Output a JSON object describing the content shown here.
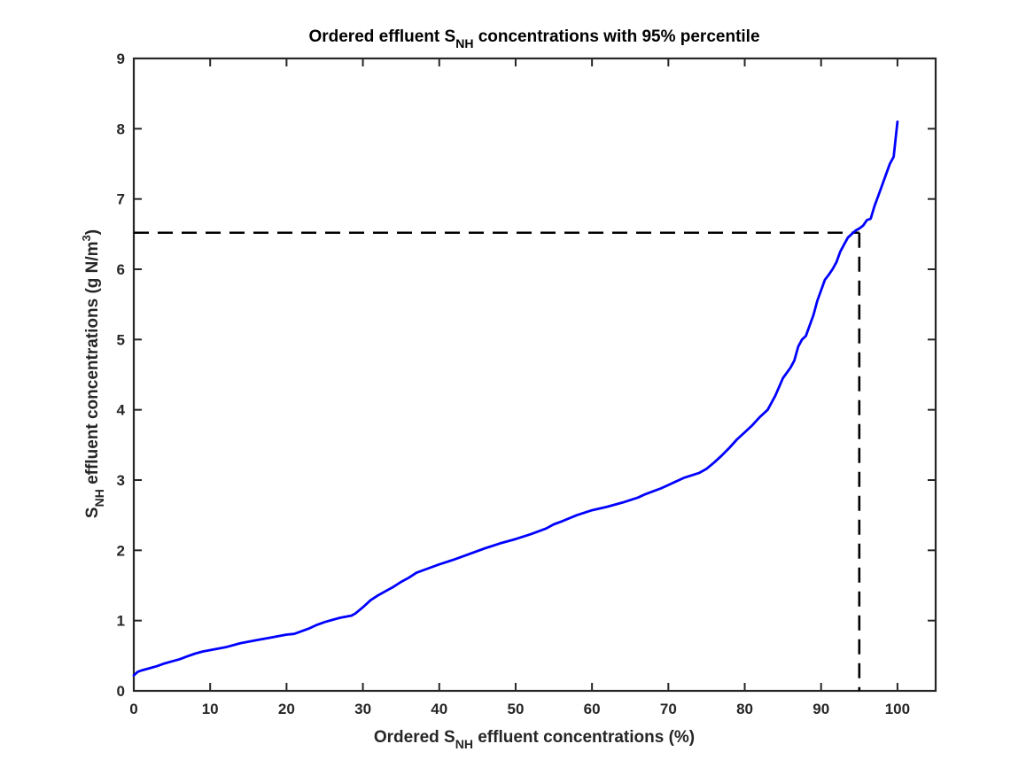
{
  "chart_data": {
    "type": "line",
    "title": {
      "prefix": "Ordered effluent S",
      "sub": "NH",
      "suffix": " concentrations with 95% percentile"
    },
    "xlabel": {
      "prefix": "Ordered S",
      "sub": "NH",
      "suffix": " effluent concentrations (%)"
    },
    "ylabel": {
      "prefix": "S",
      "sub": "NH",
      "middle": " effluent concentrations (g N/m",
      "sup": "3",
      "suffix": ")"
    },
    "xlim": [
      0,
      105
    ],
    "ylim": [
      0,
      9
    ],
    "xticks": [
      0,
      10,
      20,
      30,
      40,
      50,
      60,
      70,
      80,
      90,
      100
    ],
    "yticks": [
      0,
      1,
      2,
      3,
      4,
      5,
      6,
      7,
      8,
      9
    ],
    "grid": false,
    "series": [
      {
        "color": "#0000ff",
        "x": [
          0,
          0.5,
          1,
          2,
          3,
          4,
          5,
          6,
          7,
          8,
          9,
          10,
          12,
          14,
          16,
          18,
          20,
          21,
          22,
          23,
          24,
          25,
          26,
          27,
          28,
          28.5,
          29,
          30,
          31,
          32,
          33,
          34,
          35,
          36,
          37,
          38,
          40,
          42,
          44,
          46,
          48,
          50,
          52,
          54,
          55,
          56,
          58,
          60,
          62,
          64,
          66,
          67,
          68,
          69,
          70,
          72,
          74,
          75,
          76,
          77,
          78,
          79,
          80,
          81,
          82,
          83,
          84,
          85,
          86,
          86.5,
          87,
          87.5,
          88,
          88.5,
          89,
          89.5,
          90,
          90.5,
          91,
          91.5,
          92,
          92.5,
          93,
          93.5,
          94,
          94.5,
          95,
          95.5,
          96,
          96.5,
          97,
          97.5,
          98,
          98.5,
          99,
          99.5,
          100
        ],
        "y": [
          0.22,
          0.27,
          0.29,
          0.32,
          0.35,
          0.39,
          0.42,
          0.45,
          0.49,
          0.53,
          0.56,
          0.58,
          0.62,
          0.68,
          0.72,
          0.76,
          0.8,
          0.81,
          0.85,
          0.89,
          0.94,
          0.98,
          1.01,
          1.04,
          1.06,
          1.07,
          1.1,
          1.19,
          1.29,
          1.36,
          1.42,
          1.48,
          1.55,
          1.61,
          1.68,
          1.72,
          1.8,
          1.87,
          1.95,
          2.03,
          2.1,
          2.16,
          2.23,
          2.31,
          2.37,
          2.41,
          2.5,
          2.57,
          2.62,
          2.68,
          2.75,
          2.8,
          2.84,
          2.88,
          2.93,
          3.03,
          3.1,
          3.16,
          3.25,
          3.35,
          3.46,
          3.58,
          3.68,
          3.78,
          3.9,
          4.0,
          4.2,
          4.45,
          4.6,
          4.7,
          4.9,
          5.0,
          5.05,
          5.2,
          5.35,
          5.55,
          5.7,
          5.85,
          5.92,
          6.0,
          6.1,
          6.25,
          6.35,
          6.45,
          6.5,
          6.55,
          6.58,
          6.62,
          6.7,
          6.72,
          6.9,
          7.05,
          7.2,
          7.35,
          7.5,
          7.6,
          8.1
        ]
      }
    ],
    "reference_lines": {
      "style": "dashed",
      "color": "#000000",
      "percentile_x": 95,
      "percentile_y": 6.52
    }
  }
}
